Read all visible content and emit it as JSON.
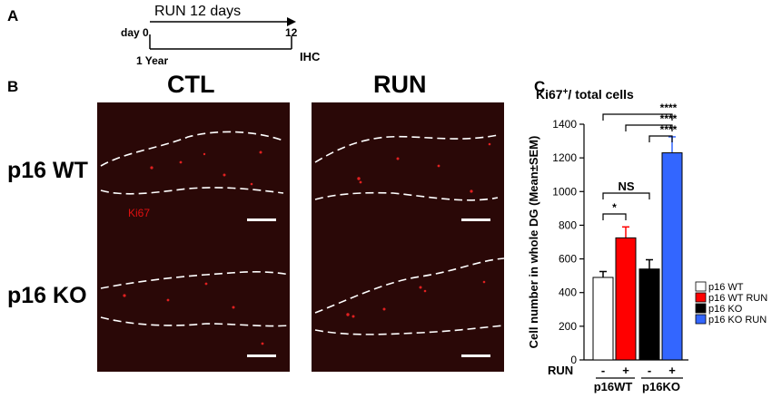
{
  "panels": {
    "a": "A",
    "b": "B",
    "c": "C"
  },
  "timeline": {
    "run_label": "RUN 12 days",
    "day_label": "day 0",
    "end_day": "12",
    "age_label": "1 Year",
    "endpoint": "IHC"
  },
  "micrographs": {
    "col_ctl": "CTL",
    "col_run": "RUN",
    "row_wt": "p16 WT",
    "row_ko": "p16 KO",
    "stain": "Ki67"
  },
  "chart_data": {
    "type": "bar",
    "title_main": "Ki67",
    "title_sup": "+",
    "title_rest": "/ total cells",
    "ylabel": "Cell number in whole DG (Mean±SEM)",
    "ylim": [
      0,
      1400
    ],
    "yticks": [
      "0",
      "200",
      "400",
      "600",
      "800",
      "1000",
      "1200",
      "1400"
    ],
    "series": [
      {
        "name": "p16 WT",
        "value": 490,
        "err": 35,
        "color": "#ffffff"
      },
      {
        "name": "p16 WT RUN",
        "value": 725,
        "err": 65,
        "color": "#ff0000"
      },
      {
        "name": "p16 KO",
        "value": 540,
        "err": 55,
        "color": "#000000"
      },
      {
        "name": "p16 KO RUN",
        "value": 1230,
        "err": 95,
        "color": "#3366ff"
      }
    ],
    "run_row_label": "RUN",
    "run_signs": [
      "-",
      "+",
      "-",
      "+"
    ],
    "groups": [
      "p16WT",
      "p16KO"
    ],
    "significance": [
      {
        "label": "*",
        "from": 0,
        "to": 1
      },
      {
        "label": "NS",
        "from": 0,
        "to": 2
      },
      {
        "label": "****",
        "from": 2,
        "to": 3
      },
      {
        "label": "****",
        "from": 1,
        "to": 3
      },
      {
        "label": "****",
        "from": 0,
        "to": 3
      }
    ]
  }
}
